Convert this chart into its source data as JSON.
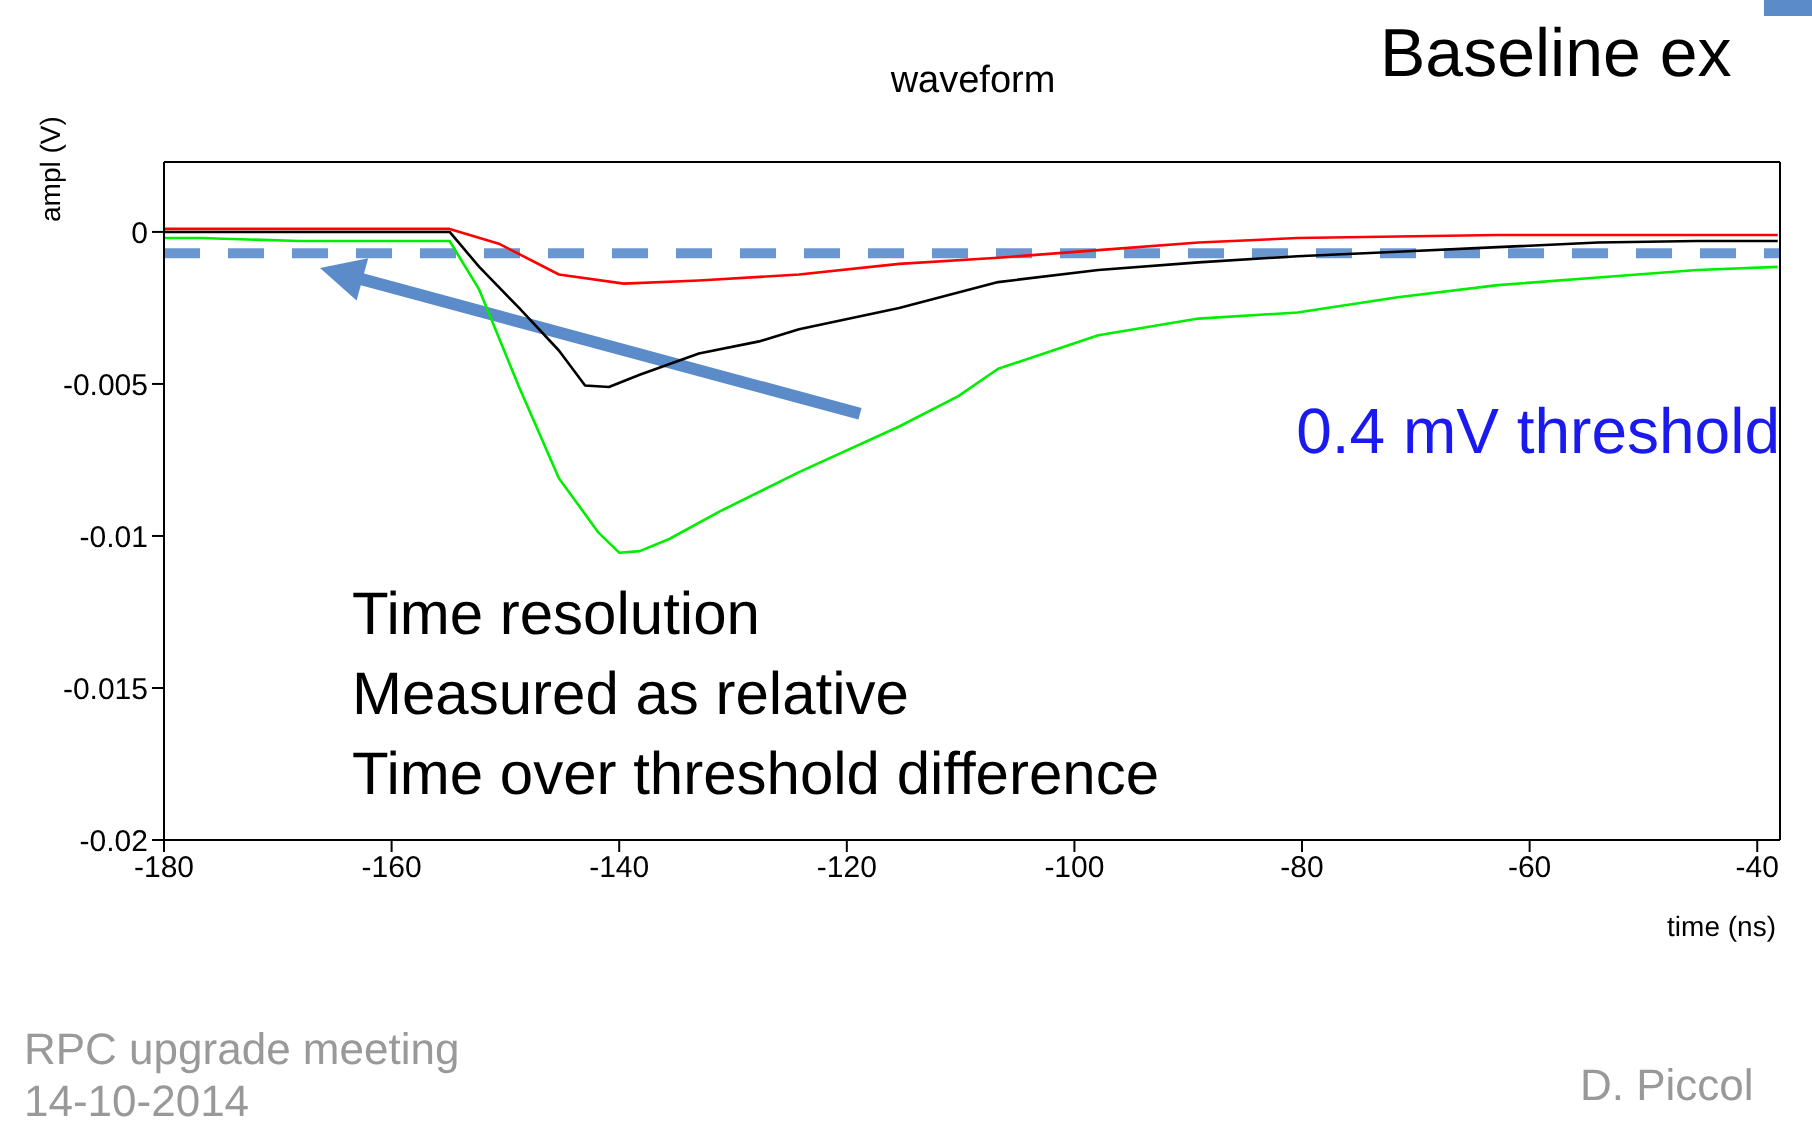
{
  "chart_data": {
    "type": "line",
    "title": "waveform",
    "xlabel": "time (ns)",
    "ylabel": "ampl (V)",
    "series": [
      {
        "color": "#ff0000",
        "x": [
          -180,
          -176.8,
          -168.1,
          -159.3,
          -154.9,
          -150.5,
          -145.3,
          -139.6,
          -133,
          -124.2,
          -115.4,
          -106.7,
          -97.9,
          -89.1,
          -80.4,
          -71.6,
          -62.8,
          -54,
          -45.3,
          -38.2
        ],
        "values": [
          0.0001,
          0.0001,
          0.0001,
          0.0001,
          0.0001,
          -0.0004,
          -0.0014,
          -0.0017,
          -0.0016,
          -0.0014,
          -0.00105,
          -0.00085,
          -0.0006,
          -0.00035,
          -0.0002,
          -0.00015,
          -0.0001,
          -0.0001,
          -0.0001,
          -0.0001
        ]
      },
      {
        "color": "#000000",
        "x": [
          -180,
          -176.8,
          -168.1,
          -159.3,
          -154.9,
          -152.3,
          -148.8,
          -145.3,
          -143,
          -140.9,
          -138.2,
          -133,
          -127.7,
          -124.2,
          -115.4,
          -106.7,
          -97.9,
          -89.1,
          -80.4,
          -71.6,
          -62.8,
          -54,
          -45.3,
          -38.2
        ],
        "values": [
          0,
          0,
          0,
          0,
          0,
          -0.00115,
          -0.0025,
          -0.0039,
          -0.00505,
          -0.0051,
          -0.0047,
          -0.004,
          -0.0036,
          -0.0032,
          -0.0025,
          -0.00165,
          -0.00125,
          -0.001,
          -0.0008,
          -0.00065,
          -0.0005,
          -0.00035,
          -0.0003,
          -0.0003
        ]
      },
      {
        "color": "#00ee00",
        "x": [
          -180,
          -176.8,
          -168.1,
          -159.3,
          -154.9,
          -152.3,
          -148.8,
          -145.3,
          -141.8,
          -140,
          -138.2,
          -135.6,
          -131.2,
          -124.2,
          -115.4,
          -110.2,
          -106.7,
          -97.9,
          -89.1,
          -80.4,
          -71.6,
          -62.8,
          -54,
          -45.3,
          -38.2
        ],
        "values": [
          -0.0002,
          -0.0002,
          -0.0003,
          -0.0003,
          -0.0003,
          -0.0019,
          -0.0051,
          -0.0081,
          -0.0099,
          -0.01055,
          -0.0105,
          -0.0101,
          -0.0092,
          -0.0079,
          -0.0064,
          -0.0054,
          -0.0045,
          -0.0034,
          -0.00285,
          -0.00265,
          -0.00215,
          -0.00175,
          -0.0015,
          -0.00125,
          -0.00115
        ]
      }
    ],
    "xlim": [
      -180,
      -38
    ],
    "ylim": [
      -0.02,
      0.0023
    ],
    "xticks": [
      -180,
      -160,
      -140,
      -120,
      -100,
      -80,
      -60,
      -40
    ],
    "yticks": [
      0,
      -0.005,
      -0.01,
      -0.015,
      -0.02
    ],
    "marker": "none",
    "ref_lines": [
      {
        "axis": "y",
        "value": -0.0007,
        "label": "0.4 mV threshold",
        "color": "#6a97cf",
        "line_style": "dashed"
      }
    ],
    "annotations": [
      "Baseline ex",
      "Time resolution\nMeasured as relative\nTime over threshold difference",
      "RPC upgrade meeting",
      "14-10-2014",
      "D. Piccol"
    ]
  }
}
